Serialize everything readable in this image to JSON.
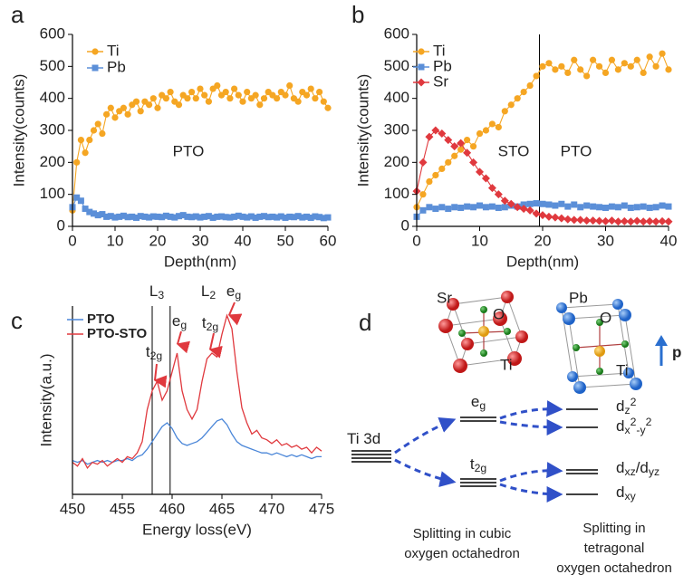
{
  "chart_data": [
    {
      "type": "line",
      "panel": "a",
      "xlabel": "Depth(nm)",
      "ylabel": "Intensity(counts)",
      "xlim": [
        0,
        60
      ],
      "ylim": [
        0,
        600
      ],
      "xticks": [
        0,
        10,
        20,
        30,
        40,
        50,
        60
      ],
      "yticks": [
        0,
        100,
        200,
        300,
        400,
        500,
        600
      ],
      "legend": "upper left",
      "x": [
        0,
        1,
        2,
        3,
        4,
        5,
        6,
        7,
        8,
        9,
        10,
        11,
        12,
        13,
        14,
        15,
        16,
        17,
        18,
        19,
        20,
        21,
        22,
        23,
        24,
        25,
        26,
        27,
        28,
        29,
        30,
        31,
        32,
        33,
        34,
        35,
        36,
        37,
        38,
        39,
        40,
        41,
        42,
        43,
        44,
        45,
        46,
        47,
        48,
        49,
        50,
        51,
        52,
        53,
        54,
        55,
        56,
        57,
        58,
        59,
        60
      ],
      "series": [
        {
          "name": "Ti",
          "color": "#f5a623",
          "marker": "circle",
          "values": [
            50,
            200,
            270,
            230,
            270,
            300,
            320,
            290,
            350,
            370,
            340,
            360,
            370,
            350,
            380,
            390,
            360,
            390,
            380,
            400,
            370,
            410,
            400,
            420,
            390,
            380,
            410,
            400,
            420,
            400,
            430,
            410,
            390,
            430,
            440,
            410,
            420,
            400,
            430,
            410,
            390,
            420,
            400,
            410,
            380,
            400,
            420,
            410,
            400,
            420,
            410,
            440,
            400,
            390,
            420,
            410,
            430,
            400,
            420,
            390,
            370
          ]
        },
        {
          "name": "Pb",
          "color": "#5b8fd8",
          "marker": "square",
          "values": [
            60,
            90,
            80,
            55,
            45,
            40,
            35,
            38,
            30,
            32,
            28,
            30,
            33,
            29,
            30,
            27,
            32,
            30,
            28,
            31,
            30,
            29,
            33,
            30,
            28,
            32,
            35,
            30,
            29,
            31,
            28,
            30,
            32,
            27,
            30,
            31,
            29,
            28,
            30,
            33,
            30,
            28,
            31,
            27,
            30,
            32,
            29,
            30,
            28,
            31,
            27,
            30,
            29,
            32,
            28,
            30,
            27,
            31,
            29,
            26,
            28
          ]
        }
      ],
      "annotations": [
        {
          "text": "PTO",
          "color": "#5b8fd8"
        }
      ]
    },
    {
      "type": "line",
      "panel": "b",
      "xlabel": "Depth(nm)",
      "ylabel": "Intensity(counts)",
      "xlim": [
        0,
        40
      ],
      "ylim": [
        0,
        600
      ],
      "xticks": [
        0,
        10,
        20,
        30,
        40
      ],
      "yticks": [
        0,
        100,
        200,
        300,
        400,
        500,
        600
      ],
      "legend": "upper left",
      "vlines": [
        19.5
      ],
      "x": [
        0,
        1,
        2,
        3,
        4,
        5,
        6,
        7,
        8,
        9,
        10,
        11,
        12,
        13,
        14,
        15,
        16,
        17,
        18,
        19,
        20,
        21,
        22,
        23,
        24,
        25,
        26,
        27,
        28,
        29,
        30,
        31,
        32,
        33,
        34,
        35,
        36,
        37,
        38,
        39,
        40
      ],
      "series": [
        {
          "name": "Ti",
          "color": "#f5a623",
          "marker": "circle",
          "values": [
            60,
            100,
            140,
            160,
            180,
            200,
            220,
            240,
            270,
            250,
            290,
            300,
            320,
            310,
            360,
            380,
            400,
            420,
            440,
            470,
            500,
            510,
            490,
            500,
            480,
            520,
            490,
            470,
            520,
            500,
            480,
            520,
            490,
            510,
            500,
            520,
            480,
            530,
            500,
            540,
            490
          ]
        },
        {
          "name": "Pb",
          "color": "#5b8fd8",
          "marker": "square",
          "values": [
            30,
            50,
            60,
            55,
            60,
            55,
            60,
            58,
            62,
            60,
            65,
            60,
            62,
            58,
            60,
            65,
            62,
            68,
            70,
            72,
            70,
            68,
            65,
            70,
            62,
            68,
            60,
            65,
            62,
            60,
            58,
            62,
            60,
            65,
            58,
            60,
            62,
            58,
            60,
            65,
            62
          ]
        },
        {
          "name": "Sr",
          "color": "#e0393e",
          "marker": "diamond",
          "values": [
            110,
            200,
            280,
            300,
            290,
            270,
            250,
            260,
            230,
            200,
            170,
            150,
            120,
            100,
            80,
            70,
            60,
            55,
            50,
            40,
            35,
            30,
            28,
            25,
            22,
            20,
            20,
            18,
            18,
            17,
            16,
            18,
            15,
            16,
            15,
            17,
            15,
            16,
            15,
            16,
            15
          ]
        }
      ],
      "annotations": [
        {
          "text": "STO",
          "color": "#e0393e"
        },
        {
          "text": "PTO",
          "color": "#5b8fd8"
        }
      ]
    },
    {
      "type": "line",
      "panel": "c",
      "xlabel": "Energy loss(eV)",
      "ylabel": "Intensity(a.u.)",
      "xlim": [
        450,
        475
      ],
      "ylim": [
        0,
        100
      ],
      "xticks": [
        450,
        455,
        460,
        465,
        470,
        475
      ],
      "legend": "upper left",
      "vlines": [
        458,
        459.8
      ],
      "x": [
        450,
        450.5,
        451,
        451.5,
        452,
        452.5,
        453,
        453.5,
        454,
        454.5,
        455,
        455.5,
        456,
        456.5,
        457,
        457.5,
        458,
        458.5,
        459,
        459.5,
        460,
        460.5,
        461,
        461.5,
        462,
        462.5,
        463,
        463.5,
        464,
        464.5,
        465,
        465.5,
        466,
        466.5,
        467,
        467.5,
        468,
        468.5,
        469,
        469.5,
        470,
        470.5,
        471,
        471.5,
        472,
        472.5,
        473,
        473.5,
        474,
        474.5,
        475
      ],
      "series": [
        {
          "name": "PTO",
          "color": "#4a86d8",
          "marker": "none",
          "values": [
            18,
            17,
            18,
            16,
            17,
            18,
            17,
            18,
            17,
            18,
            18,
            19,
            18,
            20,
            21,
            24,
            28,
            32,
            36,
            38,
            35,
            30,
            27,
            26,
            27,
            28,
            30,
            33,
            36,
            39,
            40,
            37,
            32,
            28,
            26,
            25,
            24,
            23,
            22,
            22,
            21,
            22,
            21,
            20,
            21,
            20,
            21,
            20,
            19,
            20,
            20
          ]
        },
        {
          "name": "PTO-STO",
          "color": "#e0393e",
          "marker": "none",
          "values": [
            17,
            15,
            19,
            14,
            17,
            16,
            18,
            15,
            17,
            19,
            17,
            20,
            19,
            22,
            28,
            45,
            55,
            60,
            50,
            55,
            65,
            75,
            55,
            45,
            40,
            45,
            60,
            72,
            75,
            73,
            85,
            95,
            88,
            65,
            46,
            38,
            32,
            34,
            30,
            29,
            27,
            29,
            26,
            27,
            25,
            26,
            24,
            25,
            22,
            25,
            23
          ]
        }
      ],
      "annotations": [
        {
          "parts": [
            [
              "L",
              ""
            ],
            [
              "3",
              "sub"
            ]
          ]
        },
        {
          "parts": [
            [
              "L",
              ""
            ],
            [
              "2",
              "sub"
            ]
          ]
        },
        {
          "parts": [
            [
              "e",
              ""
            ],
            [
              "g",
              "sub"
            ]
          ]
        },
        {
          "parts": [
            [
              "e",
              ""
            ],
            [
              "g",
              "sub"
            ]
          ]
        },
        {
          "parts": [
            [
              "t",
              ""
            ],
            [
              "2g",
              "sub"
            ]
          ]
        },
        {
          "parts": [
            [
              "t",
              ""
            ],
            [
              "2g",
              "sub"
            ]
          ]
        }
      ]
    }
  ],
  "diagram": {
    "panel": "d",
    "atoms_left": [
      {
        "text": "Sr",
        "color": "#d42a2a"
      },
      {
        "text": "O",
        "color": "#2a8a2a"
      },
      {
        "text": "Ti",
        "color": "#e0a020"
      }
    ],
    "atoms_right": [
      {
        "text": "Pb",
        "color": "#2a6fcf"
      },
      {
        "text": "O",
        "color": "#2a8a2a"
      },
      {
        "text": "Ti",
        "color": "#e0a020"
      }
    ],
    "polar": "p",
    "levels": [
      {
        "parts": [
          [
            "Ti 3d",
            ""
          ]
        ]
      },
      {
        "parts": [
          [
            "e",
            ""
          ],
          [
            "g",
            "sub"
          ]
        ]
      },
      {
        "parts": [
          [
            "t",
            ""
          ],
          [
            "2g",
            "sub"
          ]
        ]
      },
      {
        "parts": [
          [
            "d",
            ""
          ],
          [
            "z",
            "sub"
          ],
          [
            "2",
            "sup"
          ]
        ]
      },
      {
        "parts": [
          [
            "d",
            ""
          ],
          [
            "x",
            "sub"
          ],
          [
            "2",
            "sup"
          ],
          [
            "-y",
            "sub"
          ],
          [
            "2",
            "sup"
          ]
        ]
      },
      {
        "parts": [
          [
            "d",
            ""
          ],
          [
            "xz",
            "sub"
          ],
          [
            "/d",
            ""
          ],
          [
            "yz",
            "sub"
          ]
        ]
      },
      {
        "parts": [
          [
            "d",
            ""
          ],
          [
            "xy",
            "sub"
          ]
        ]
      }
    ],
    "captions": [
      [
        "Splitting in cubic",
        "oxygen octahedron"
      ],
      [
        "Splitting in",
        "tetragonal",
        "oxygen octahedron"
      ]
    ]
  }
}
